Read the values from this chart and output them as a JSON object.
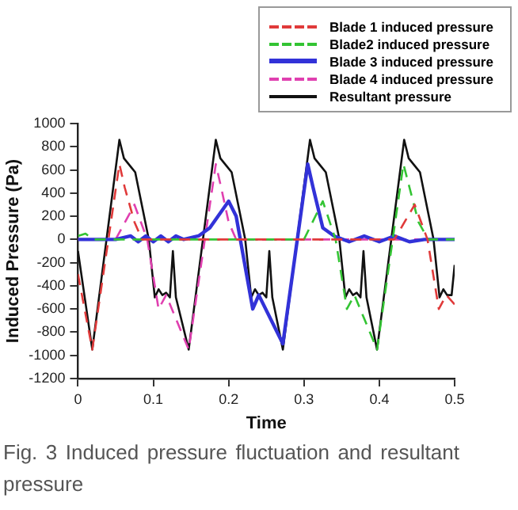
{
  "chart_data": {
    "type": "line",
    "xlabel": "Time",
    "ylabel": "Induced Pressure (Pa)",
    "xlim": [
      0,
      0.5
    ],
    "xticks": [
      0,
      0.1,
      0.2,
      0.3,
      0.4,
      0.5
    ],
    "ylim": [
      -1200,
      1000
    ],
    "yticks": [
      -1200,
      -1000,
      -800,
      -600,
      -400,
      -200,
      0,
      200,
      400,
      600,
      800,
      1000
    ],
    "grid": false,
    "legend": "top right",
    "marker": "none",
    "series": [
      {
        "name": "Blade 1 induced pressure",
        "color": "#e03a3a",
        "line_style": "dashed",
        "x": [
          0,
          0.019,
          0.055,
          0.062,
          0.075,
          0.085,
          0.1,
          0.15,
          0.2,
          0.25,
          0.3,
          0.35,
          0.4,
          0.42,
          0.447,
          0.464,
          0.479,
          0.489,
          0.5
        ],
        "values": [
          -300,
          -950,
          650,
          450,
          150,
          0,
          0,
          0,
          0,
          0,
          0,
          0,
          0,
          0,
          300,
          0,
          -600,
          -480,
          -560
        ]
      },
      {
        "name": "Blade2  induced pressure",
        "color": "#33c433",
        "line_style": "dashed",
        "x": [
          0,
          0.01,
          0.02,
          0.05,
          0.1,
          0.15,
          0.2,
          0.25,
          0.3,
          0.325,
          0.342,
          0.357,
          0.367,
          0.397,
          0.432,
          0.44,
          0.452,
          0.465,
          0.5
        ],
        "values": [
          30,
          50,
          0,
          0,
          0,
          0,
          0,
          0,
          0,
          330,
          0,
          -600,
          -480,
          -950,
          650,
          450,
          150,
          0,
          0
        ]
      },
      {
        "name": "Blade 3  induced pressure",
        "color": "#3232d8",
        "line_style": "solid",
        "x": [
          0,
          0.05,
          0.07,
          0.08,
          0.09,
          0.1,
          0.11,
          0.12,
          0.13,
          0.14,
          0.16,
          0.175,
          0.2,
          0.21,
          0.232,
          0.24,
          0.272,
          0.305,
          0.312,
          0.325,
          0.34,
          0.36,
          0.38,
          0.4,
          0.42,
          0.44,
          0.46,
          0.48,
          0.5
        ],
        "values": [
          0,
          0,
          30,
          -20,
          30,
          -20,
          30,
          -20,
          30,
          0,
          30,
          100,
          330,
          200,
          -600,
          -480,
          -900,
          650,
          450,
          100,
          30,
          -20,
          30,
          -20,
          30,
          -20,
          0,
          0,
          0
        ]
      },
      {
        "name": "Blade 4  induced pressure",
        "color": "#e040b0",
        "line_style": "dashed",
        "x": [
          0,
          0.05,
          0.075,
          0.092,
          0.107,
          0.117,
          0.147,
          0.183,
          0.19,
          0.2,
          0.21,
          0.25,
          0.3,
          0.35,
          0.4,
          0.45,
          0.5
        ],
        "values": [
          0,
          0,
          300,
          0,
          -600,
          -480,
          -950,
          650,
          450,
          150,
          0,
          0,
          0,
          0,
          0,
          0,
          0
        ]
      },
      {
        "name": "Resultant pressure",
        "color": "#111111",
        "line_style": "solid",
        "x": [
          0,
          0.019,
          0.055,
          0.061,
          0.071,
          0.076,
          0.094,
          0.102,
          0.107,
          0.112,
          0.117,
          0.122,
          0.126,
          0.13,
          0.147,
          0.183,
          0.189,
          0.199,
          0.204,
          0.222,
          0.23,
          0.235,
          0.24,
          0.245,
          0.25,
          0.254,
          0.258,
          0.272,
          0.308,
          0.314,
          0.324,
          0.329,
          0.347,
          0.355,
          0.36,
          0.365,
          0.37,
          0.375,
          0.379,
          0.383,
          0.397,
          0.433,
          0.439,
          0.449,
          0.454,
          0.472,
          0.48,
          0.485,
          0.49,
          0.496,
          0.5
        ],
        "values": [
          -100,
          -950,
          860,
          700,
          620,
          580,
          0,
          -500,
          -430,
          -480,
          -460,
          -500,
          -100,
          -500,
          -950,
          860,
          700,
          620,
          580,
          0,
          -500,
          -430,
          -480,
          -460,
          -500,
          -100,
          -500,
          -950,
          860,
          700,
          620,
          580,
          0,
          -500,
          -430,
          -480,
          -460,
          -500,
          -100,
          -500,
          -950,
          860,
          700,
          620,
          580,
          0,
          -500,
          -430,
          -480,
          -480,
          -220
        ]
      }
    ],
    "annotations": [
      "Fig.  3  Induced  pressure  fluctuation  and resultant pressure"
    ]
  }
}
